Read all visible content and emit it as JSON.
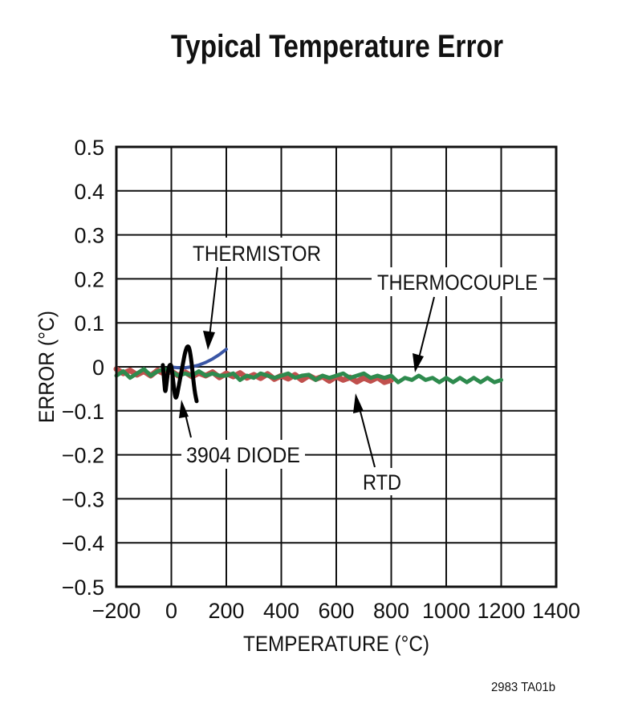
{
  "chart_data": {
    "type": "line",
    "title": "Typical Temperature Error",
    "xlabel": "TEMPERATURE (°C)",
    "ylabel": "ERROR (°C)",
    "xlim": [
      -200,
      1400
    ],
    "ylim": [
      -0.5,
      0.5
    ],
    "xticks": [
      "−200",
      "0",
      "200",
      "400",
      "600",
      "800",
      "1000",
      "1200",
      "1400"
    ],
    "xtick_values": [
      -200,
      0,
      200,
      400,
      600,
      800,
      1000,
      1200,
      1400
    ],
    "yticks": [
      "0.5",
      "0.4",
      "0.3",
      "0.2",
      "0.1",
      "0",
      "−0.1",
      "−0.2",
      "−0.3",
      "−0.4",
      "−0.5"
    ],
    "ytick_values": [
      0.5,
      0.4,
      0.3,
      0.2,
      0.1,
      0,
      -0.1,
      -0.2,
      -0.3,
      -0.4,
      -0.5
    ],
    "grid": true,
    "footnote": "2983 TA01b",
    "series": [
      {
        "name": "RTD",
        "color": "#c0504d",
        "x": [
          -200,
          -175,
          -150,
          -125,
          -100,
          -75,
          -50,
          -25,
          0,
          25,
          50,
          75,
          100,
          125,
          150,
          175,
          200,
          225,
          250,
          275,
          300,
          325,
          350,
          375,
          400,
          425,
          450,
          475,
          500,
          525,
          550,
          575,
          600,
          625,
          650,
          675,
          700,
          725,
          750,
          775,
          800
        ],
        "y": [
          -0.005,
          -0.015,
          -0.008,
          -0.018,
          -0.01,
          -0.02,
          -0.008,
          -0.016,
          -0.01,
          -0.02,
          -0.012,
          -0.022,
          -0.014,
          -0.02,
          -0.012,
          -0.024,
          -0.015,
          -0.022,
          -0.014,
          -0.025,
          -0.018,
          -0.026,
          -0.016,
          -0.028,
          -0.02,
          -0.027,
          -0.018,
          -0.03,
          -0.02,
          -0.028,
          -0.022,
          -0.032,
          -0.022,
          -0.03,
          -0.024,
          -0.034,
          -0.025,
          -0.032,
          -0.024,
          -0.035,
          -0.03
        ]
      },
      {
        "name": "THERMOCOUPLE",
        "color": "#2e8b4e",
        "x": [
          -200,
          -175,
          -150,
          -125,
          -100,
          -75,
          -50,
          -25,
          0,
          25,
          50,
          75,
          100,
          125,
          150,
          175,
          200,
          225,
          250,
          275,
          300,
          325,
          350,
          375,
          400,
          425,
          450,
          475,
          500,
          525,
          550,
          575,
          600,
          625,
          650,
          675,
          700,
          725,
          750,
          775,
          800,
          825,
          850,
          875,
          900,
          925,
          950,
          975,
          1000,
          1025,
          1050,
          1075,
          1100,
          1125,
          1150,
          1175,
          1200
        ],
        "y": [
          -0.02,
          -0.01,
          -0.025,
          -0.015,
          -0.005,
          -0.02,
          -0.01,
          -0.005,
          -0.01,
          -0.02,
          -0.015,
          -0.02,
          -0.01,
          -0.02,
          -0.015,
          -0.02,
          -0.02,
          -0.015,
          -0.03,
          -0.02,
          -0.025,
          -0.015,
          -0.02,
          -0.025,
          -0.02,
          -0.015,
          -0.025,
          -0.02,
          -0.018,
          -0.03,
          -0.02,
          -0.025,
          -0.02,
          -0.015,
          -0.025,
          -0.02,
          -0.015,
          -0.025,
          -0.02,
          -0.025,
          -0.02,
          -0.035,
          -0.025,
          -0.03,
          -0.02,
          -0.03,
          -0.025,
          -0.035,
          -0.025,
          -0.035,
          -0.025,
          -0.035,
          -0.025,
          -0.035,
          -0.025,
          -0.035,
          -0.03
        ]
      },
      {
        "name": "THERMISTOR",
        "color": "#3a56a5",
        "x": [
          -10,
          25,
          50,
          75,
          100,
          125,
          150,
          175,
          200
        ],
        "y": [
          0.0,
          -0.002,
          -0.002,
          0.0,
          0.004,
          0.01,
          0.018,
          0.028,
          0.04
        ]
      },
      {
        "name": "3904 DIODE",
        "color": "#000000",
        "x": [
          -31,
          -25,
          -22,
          -18,
          -10,
          -3,
          1,
          8,
          14,
          19,
          28,
          40,
          52,
          63,
          72,
          80,
          86,
          92
        ],
        "y": [
          0.004,
          -0.04,
          -0.06,
          -0.04,
          0.0,
          0.006,
          0.0,
          -0.04,
          -0.07,
          -0.07,
          -0.04,
          0.0,
          0.04,
          0.05,
          0.02,
          -0.03,
          -0.06,
          -0.078
        ]
      }
    ]
  }
}
